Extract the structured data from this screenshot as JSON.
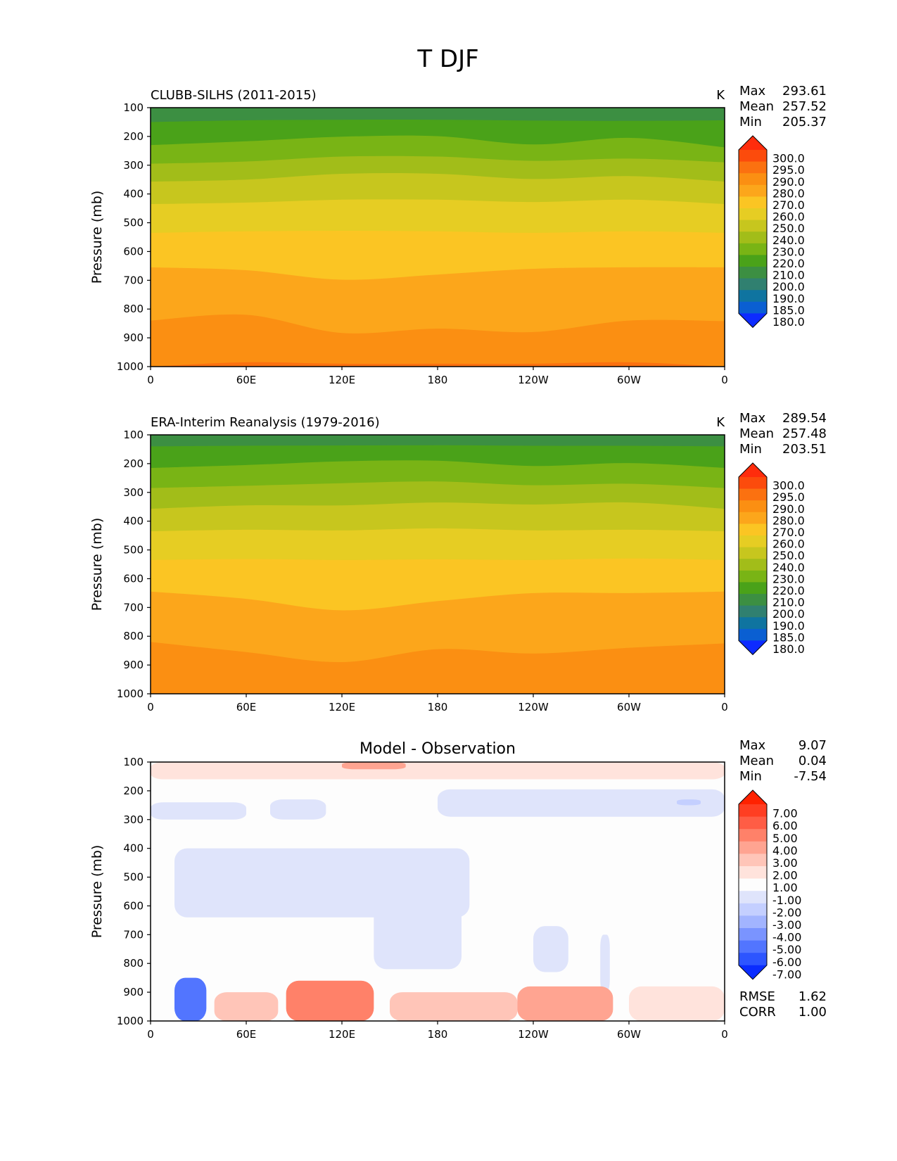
{
  "figure": {
    "title": "T DJF"
  },
  "chart_data": [
    {
      "type": "heatmap",
      "title": "CLUBB-SILHS (2011-2015)",
      "units": "K",
      "ylabel": "Pressure (mb)",
      "xlabel": "",
      "x_ticks": [
        "0",
        "60E",
        "120E",
        "180",
        "120W",
        "60W",
        "0"
      ],
      "y_ticks": [
        "100",
        "200",
        "300",
        "400",
        "500",
        "600",
        "700",
        "800",
        "900",
        "1000"
      ],
      "xlim": [
        0,
        360
      ],
      "ylim": [
        100,
        1000
      ],
      "y_inverted": true,
      "stats": {
        "Max": "293.61",
        "Mean": "257.52",
        "Min": "205.37"
      },
      "stat_labels": [
        "Max",
        "Mean",
        "Min"
      ],
      "levels": [
        "180.0",
        "185.0",
        "190.0",
        "200.0",
        "210.0",
        "220.0",
        "230.0",
        "240.0",
        "250.0",
        "260.0",
        "270.0",
        "280.0",
        "290.0",
        "295.0",
        "300.0"
      ],
      "level_colors": [
        "#0d2bff",
        "#0a5fd2",
        "#0f74a0",
        "#308070",
        "#3c8f42",
        "#4aa219",
        "#79b415",
        "#a2bd19",
        "#c7c61e",
        "#e6cd23",
        "#fbc523",
        "#fca61b",
        "#fb8f12",
        "#fb7110",
        "#fc4b0c",
        "#ff2c0c"
      ],
      "contours": [
        {
          "value": 210,
          "p": [
            150,
            144,
            142,
            142,
            145,
            146,
            144
          ]
        },
        {
          "value": 220,
          "p": [
            230,
            217,
            201,
            199,
            228,
            205,
            238
          ]
        },
        {
          "value": 230,
          "p": [
            295,
            287,
            270,
            270,
            285,
            277,
            290
          ]
        },
        {
          "value": 240,
          "p": [
            357,
            350,
            330,
            330,
            348,
            338,
            357
          ]
        },
        {
          "value": 250,
          "p": [
            435,
            430,
            420,
            420,
            428,
            420,
            435
          ]
        },
        {
          "value": 260,
          "p": [
            535,
            530,
            528,
            530,
            535,
            530,
            535
          ]
        },
        {
          "value": 270,
          "p": [
            655,
            665,
            698,
            680,
            660,
            655,
            655
          ]
        },
        {
          "value": 280,
          "p": [
            840,
            820,
            883,
            868,
            880,
            840,
            842
          ]
        },
        {
          "value": 290,
          "p": [
            1000,
            985,
            990,
            990,
            990,
            985,
            1000
          ]
        }
      ]
    },
    {
      "type": "heatmap",
      "title": "ERA-Interim Reanalysis (1979-2016)",
      "units": "K",
      "ylabel": "Pressure (mb)",
      "xlabel": "",
      "x_ticks": [
        "0",
        "60E",
        "120E",
        "180",
        "120W",
        "60W",
        "0"
      ],
      "y_ticks": [
        "100",
        "200",
        "300",
        "400",
        "500",
        "600",
        "700",
        "800",
        "900",
        "1000"
      ],
      "xlim": [
        0,
        360
      ],
      "ylim": [
        100,
        1000
      ],
      "y_inverted": true,
      "stats": {
        "Max": "289.54",
        "Mean": "257.48",
        "Min": "203.51"
      },
      "stat_labels": [
        "Max",
        "Mean",
        "Min"
      ],
      "levels": [
        "180.0",
        "185.0",
        "190.0",
        "200.0",
        "210.0",
        "220.0",
        "230.0",
        "240.0",
        "250.0",
        "260.0",
        "270.0",
        "280.0",
        "290.0",
        "295.0",
        "300.0"
      ],
      "level_colors": [
        "#0d2bff",
        "#0a5fd2",
        "#0f74a0",
        "#308070",
        "#3c8f42",
        "#4aa219",
        "#79b415",
        "#a2bd19",
        "#c7c61e",
        "#e6cd23",
        "#fbc523",
        "#fca61b",
        "#fb8f12",
        "#fb7110",
        "#fc4b0c",
        "#ff2c0c"
      ],
      "contours": [
        {
          "value": 210,
          "p": [
            140,
            138,
            137,
            136,
            138,
            138,
            140
          ]
        },
        {
          "value": 220,
          "p": [
            215,
            205,
            192,
            190,
            208,
            198,
            215
          ]
        },
        {
          "value": 230,
          "p": [
            285,
            277,
            268,
            262,
            275,
            270,
            285
          ]
        },
        {
          "value": 240,
          "p": [
            357,
            345,
            345,
            335,
            342,
            335,
            357
          ]
        },
        {
          "value": 250,
          "p": [
            435,
            430,
            432,
            425,
            432,
            430,
            435
          ]
        },
        {
          "value": 260,
          "p": [
            535,
            532,
            535,
            533,
            535,
            530,
            535
          ]
        },
        {
          "value": 270,
          "p": [
            645,
            670,
            710,
            678,
            650,
            650,
            645
          ]
        },
        {
          "value": 280,
          "p": [
            820,
            855,
            890,
            845,
            860,
            840,
            825
          ]
        }
      ]
    },
    {
      "type": "heatmap",
      "title": "Model - Observation",
      "units": "",
      "ylabel": "Pressure (mb)",
      "xlabel": "",
      "x_ticks": [
        "0",
        "60E",
        "120E",
        "180",
        "120W",
        "60W",
        "0"
      ],
      "y_ticks": [
        "100",
        "200",
        "300",
        "400",
        "500",
        "600",
        "700",
        "800",
        "900",
        "1000"
      ],
      "xlim": [
        0,
        360
      ],
      "ylim": [
        100,
        1000
      ],
      "y_inverted": true,
      "stats": {
        "Max": "9.07",
        "Mean": "0.04",
        "Min": "-7.54"
      },
      "stat_labels": [
        "Max",
        "Mean",
        "Min"
      ],
      "extra_stats": {
        "RMSE": "1.62",
        "CORR": "1.00"
      },
      "extra_stat_labels": [
        "RMSE",
        "CORR"
      ],
      "levels": [
        "-7.00",
        "-6.00",
        "-5.00",
        "-4.00",
        "-3.00",
        "-2.00",
        "-1.00",
        "1.00",
        "2.00",
        "3.00",
        "4.00",
        "5.00",
        "6.00",
        "7.00"
      ],
      "level_colors": [
        "#0a2cff",
        "#2d55ff",
        "#5275ff",
        "#7a94ff",
        "#a2b4ff",
        "#c4cfff",
        "#dfe4fb",
        "#fdfdfd",
        "#ffe3dc",
        "#ffc5b8",
        "#ffa491",
        "#ff8169",
        "#ff5d45",
        "#ff3e22",
        "#ff2200"
      ],
      "anomaly_regions": [
        {
          "x": [
            0,
            360
          ],
          "p": [
            100,
            160
          ],
          "value": 1.5
        },
        {
          "x": [
            120,
            160
          ],
          "p": [
            100,
            125
          ],
          "value": 3.5
        },
        {
          "x": [
            0,
            60
          ],
          "p": [
            240,
            300
          ],
          "value": -1.5
        },
        {
          "x": [
            75,
            110
          ],
          "p": [
            230,
            300
          ],
          "value": -1.5
        },
        {
          "x": [
            180,
            360
          ],
          "p": [
            195,
            290
          ],
          "value": -1.5
        },
        {
          "x": [
            330,
            345
          ],
          "p": [
            230,
            250
          ],
          "value": -2.5
        },
        {
          "x": [
            15,
            200
          ],
          "p": [
            400,
            640
          ],
          "value": -1.5
        },
        {
          "x": [
            140,
            195
          ],
          "p": [
            500,
            820
          ],
          "value": -1.5
        },
        {
          "x": [
            240,
            262
          ],
          "p": [
            670,
            830
          ],
          "value": -1.5
        },
        {
          "x": [
            282,
            288
          ],
          "p": [
            700,
            900
          ],
          "value": -1.5
        },
        {
          "x": [
            15,
            35
          ],
          "p": [
            850,
            1000
          ],
          "value": -5.5
        },
        {
          "x": [
            40,
            80
          ],
          "p": [
            900,
            1000
          ],
          "value": 2.5
        },
        {
          "x": [
            85,
            140
          ],
          "p": [
            860,
            1000
          ],
          "value": 4.5
        },
        {
          "x": [
            150,
            230
          ],
          "p": [
            900,
            1000
          ],
          "value": 2.5
        },
        {
          "x": [
            230,
            290
          ],
          "p": [
            880,
            1000
          ],
          "value": 3.5
        },
        {
          "x": [
            300,
            360
          ],
          "p": [
            880,
            1000
          ],
          "value": 1.5
        }
      ]
    }
  ]
}
